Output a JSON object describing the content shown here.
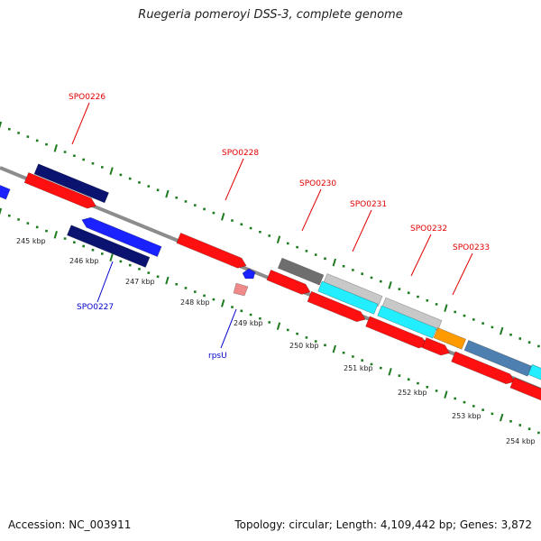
{
  "title": "Ruegeria pomeroyi DSS-3, complete genome",
  "footer": {
    "accession": "Accession: NC_003911",
    "stats": "Topology: circular; Length: 4,109,442 bp; Genes: 3,872"
  },
  "colors": {
    "backbone": "#8c8c8c",
    "ruler": "#1e7a1e",
    "label_red": "#e00000",
    "label_blue": "#0000cc",
    "navy": "#0a1470",
    "red": "#ff1010",
    "blue": "#1a22ff",
    "orange": "#ff9a00",
    "cyan": "#22eeff",
    "gray": "#6e6e6e",
    "lightgray": "#c8c8c8",
    "pink": "#f08a8a",
    "steel": "#4d80b0"
  },
  "ruler_labels": [
    "245 kbp",
    "246 kbp",
    "247 kbp",
    "248 kbp",
    "249 kbp",
    "250 kbp",
    "251 kbp",
    "252 kbp",
    "253 kbp",
    "254 kbp"
  ],
  "gene_labels": {
    "SPO0226": "SPO0226",
    "SPO0227": "SPO0227",
    "SPO0228": "SPO0228",
    "SPO0230": "SPO0230",
    "SPO0231": "SPO0231",
    "SPO0232": "SPO0232",
    "SPO0233": "SPO0233",
    "rpsU": "rpsU"
  }
}
